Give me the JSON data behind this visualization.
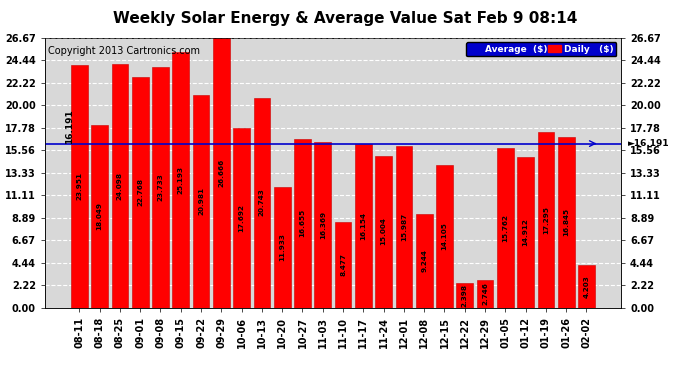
{
  "title": "Weekly Solar Energy & Average Value Sat Feb 9 08:14",
  "copyright": "Copyright 2013 Cartronics.com",
  "categories": [
    "08-11",
    "08-18",
    "08-25",
    "09-01",
    "09-08",
    "09-15",
    "09-22",
    "09-29",
    "10-06",
    "10-13",
    "10-20",
    "10-27",
    "11-03",
    "11-10",
    "11-17",
    "11-24",
    "12-01",
    "12-08",
    "12-15",
    "12-22",
    "12-29",
    "01-05",
    "01-12",
    "01-19",
    "01-26",
    "02-02"
  ],
  "values": [
    23.951,
    18.049,
    24.098,
    22.768,
    23.733,
    25.193,
    20.981,
    26.666,
    17.692,
    20.743,
    11.933,
    16.655,
    16.369,
    8.477,
    16.154,
    15.004,
    15.987,
    9.244,
    14.105,
    2.398,
    2.746,
    15.762,
    14.912,
    17.295,
    16.845,
    4.203
  ],
  "average": 16.191,
  "bar_color": "#ff0000",
  "bar_edge_color": "#cc0000",
  "avg_line_color": "#0000cc",
  "background_color": "#ffffff",
  "plot_bg_color": "#d8d8d8",
  "grid_color": "#ffffff",
  "ylim": [
    0,
    26.67
  ],
  "yticks": [
    0.0,
    2.22,
    4.44,
    6.67,
    8.89,
    11.11,
    13.33,
    15.56,
    17.78,
    20.0,
    22.22,
    24.44,
    26.67
  ],
  "left_avg_label": "16.191",
  "right_avg_label": "16.191",
  "legend_avg_label": "Average  ($)",
  "legend_daily_label": "Daily   ($)",
  "title_fontsize": 11,
  "tick_fontsize": 7,
  "val_fontsize": 5.2,
  "copyright_fontsize": 7
}
